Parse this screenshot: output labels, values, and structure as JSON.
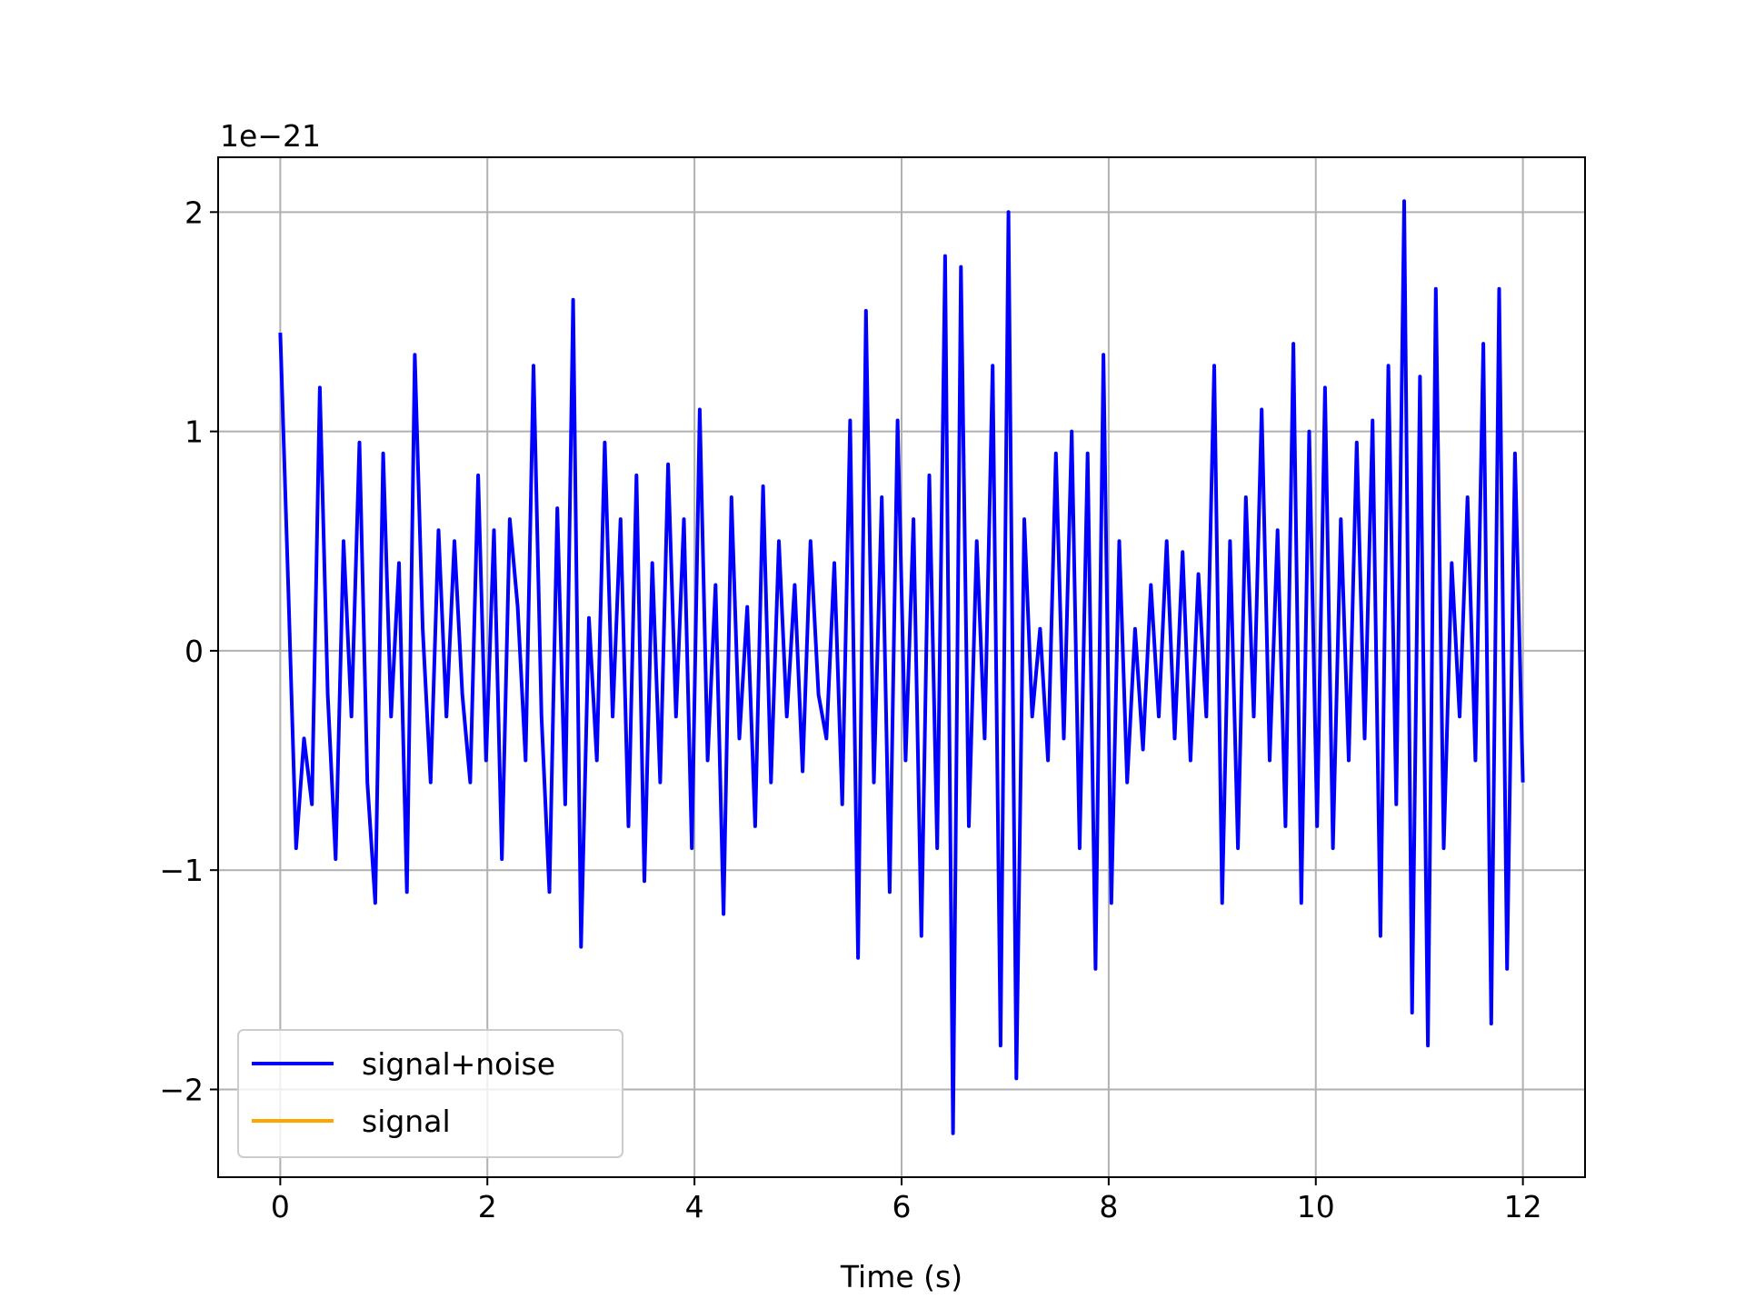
{
  "chart_data": {
    "type": "line",
    "title": "",
    "xlabel": "Time (s)",
    "ylabel": "",
    "y_scale_label": "1e−21",
    "xlim": [
      -0.6,
      12.6
    ],
    "ylim": [
      -2.4,
      2.25
    ],
    "xticks": [
      0,
      2,
      4,
      6,
      8,
      10,
      12
    ],
    "yticks": [
      -2,
      -1,
      0,
      1,
      2
    ],
    "xtick_labels": [
      "0",
      "2",
      "4",
      "6",
      "8",
      "10",
      "12"
    ],
    "ytick_labels": [
      "−2",
      "−1",
      "0",
      "1",
      "2"
    ],
    "grid": true,
    "legend_position": "lower-left",
    "series": [
      {
        "name": "signal+noise",
        "color": "#0000ff",
        "x_range": [
          0,
          12
        ],
        "values_approx": [
          1.45,
          0.3,
          -0.9,
          -0.4,
          -0.7,
          1.2,
          -0.2,
          -0.95,
          0.5,
          -0.3,
          0.95,
          -0.6,
          -1.15,
          0.9,
          -0.3,
          0.4,
          -1.1,
          1.35,
          0.1,
          -0.6,
          0.55,
          -0.3,
          0.5,
          -0.2,
          -0.6,
          0.8,
          -0.5,
          0.55,
          -0.95,
          0.6,
          0.2,
          -0.5,
          1.3,
          -0.3,
          -1.1,
          0.65,
          -0.7,
          1.6,
          -1.35,
          0.15,
          -0.5,
          0.95,
          -0.3,
          0.6,
          -0.8,
          0.8,
          -1.05,
          0.4,
          -0.6,
          0.85,
          -0.3,
          0.6,
          -0.9,
          1.1,
          -0.5,
          0.3,
          -1.2,
          0.7,
          -0.4,
          0.2,
          -0.8,
          0.75,
          -0.6,
          0.5,
          -0.3,
          0.3,
          -0.55,
          0.5,
          -0.2,
          -0.4,
          0.4,
          -0.7,
          1.05,
          -1.4,
          1.55,
          -0.6,
          0.7,
          -1.1,
          1.05,
          -0.5,
          0.6,
          -1.3,
          0.8,
          -0.9,
          1.8,
          -2.2,
          1.75,
          -0.8,
          0.5,
          -0.4,
          1.3,
          -1.8,
          2.0,
          -1.95,
          0.6,
          -0.3,
          0.1,
          -0.5,
          0.9,
          -0.4,
          1.0,
          -0.9,
          0.9,
          -1.45,
          1.35,
          -1.15,
          0.5,
          -0.6,
          0.1,
          -0.45,
          0.3,
          -0.3,
          0.5,
          -0.4,
          0.45,
          -0.5,
          0.35,
          -0.3,
          1.3,
          -1.15,
          0.5,
          -0.9,
          0.7,
          -0.3,
          1.1,
          -0.5,
          0.55,
          -0.8,
          1.4,
          -1.15,
          1.0,
          -0.8,
          1.2,
          -0.9,
          0.6,
          -0.5,
          0.95,
          -0.4,
          1.05,
          -1.3,
          1.3,
          -0.7,
          2.05,
          -1.65,
          1.25,
          -1.8,
          1.65,
          -0.9,
          0.4,
          -0.3,
          0.7,
          -0.5,
          1.4,
          -1.7,
          1.65,
          -1.45,
          0.9,
          -0.6
        ]
      },
      {
        "name": "signal",
        "color": "#ffa500",
        "values_approx": []
      }
    ]
  }
}
